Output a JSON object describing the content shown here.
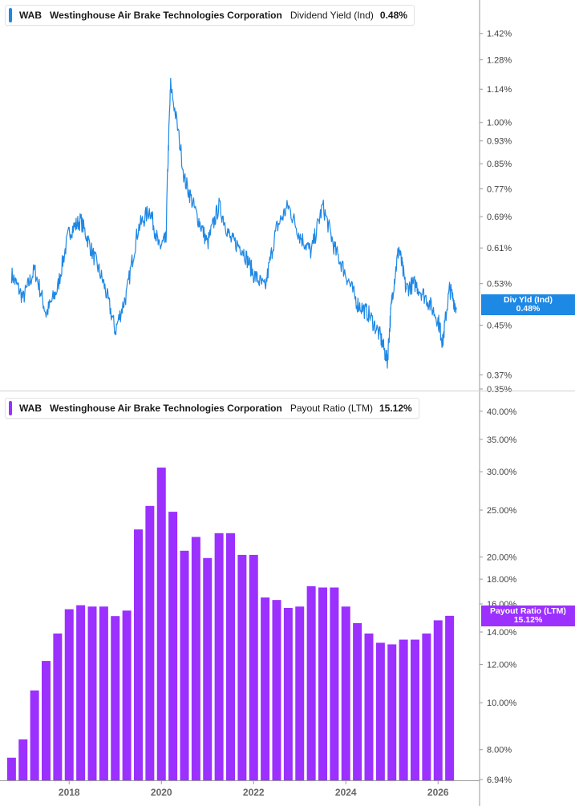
{
  "colors": {
    "yield_line": "#1e88e5",
    "payout_bar": "#9b30ff",
    "axis": "#9a9a9a",
    "tick_text": "#444444"
  },
  "top_panel": {
    "ticker": "WAB",
    "company": "Westinghouse Air Brake Technologies Corporation",
    "metric": "Dividend Yield (Ind)",
    "value": "0.48%",
    "tag_label": "Div Yld (Ind)",
    "tag_value": "0.48%"
  },
  "bottom_panel": {
    "ticker": "WAB",
    "company": "Westinghouse Air Brake Technologies Corporation",
    "metric": "Payout Ratio (LTM)",
    "value": "15.12%",
    "tag_label": "Payout Ratio (LTM)",
    "tag_value": "15.12%"
  },
  "chart_data": [
    {
      "type": "line",
      "scale": "log",
      "series": [
        {
          "name": "Dividend Yield (Ind)"
        }
      ],
      "ylim": [
        0.35,
        1.55
      ],
      "y_ticks": [
        "1.42%",
        "1.28%",
        "1.14%",
        "1.00%",
        "0.93%",
        "0.85%",
        "0.77%",
        "0.69%",
        "0.61%",
        "0.53%",
        "0.45%",
        "0.37%",
        "0.35%"
      ],
      "x": [
        "2016.75",
        "2017.0",
        "2017.25",
        "2017.5",
        "2017.75",
        "2018.0",
        "2018.25",
        "2018.5",
        "2018.75",
        "2019.0",
        "2019.25",
        "2019.5",
        "2019.75",
        "2019.95",
        "2020.1",
        "2020.2",
        "2020.5",
        "2020.75",
        "2021.0",
        "2021.25",
        "2021.5",
        "2021.75",
        "2022.0",
        "2022.25",
        "2022.5",
        "2022.75",
        "2023.0",
        "2023.25",
        "2023.5",
        "2023.75",
        "2024.0",
        "2024.25",
        "2024.5",
        "2024.75",
        "2024.9",
        "2025.0",
        "2025.15",
        "2025.3",
        "2025.5",
        "2025.75",
        "2026.0",
        "2026.1",
        "2026.25",
        "2026.4"
      ],
      "values": [
        0.55,
        0.5,
        0.56,
        0.47,
        0.52,
        0.65,
        0.68,
        0.6,
        0.53,
        0.44,
        0.51,
        0.66,
        0.71,
        0.61,
        0.63,
        1.16,
        0.8,
        0.7,
        0.62,
        0.72,
        0.63,
        0.61,
        0.55,
        0.52,
        0.66,
        0.72,
        0.64,
        0.6,
        0.72,
        0.61,
        0.55,
        0.49,
        0.47,
        0.43,
        0.39,
        0.5,
        0.61,
        0.52,
        0.53,
        0.5,
        0.46,
        0.42,
        0.52,
        0.48
      ]
    },
    {
      "type": "bar",
      "scale": "log",
      "series": [
        {
          "name": "Payout Ratio (LTM)"
        }
      ],
      "ylim": [
        6.94,
        42
      ],
      "y_ticks": [
        "40.00%",
        "35.00%",
        "30.00%",
        "25.00%",
        "20.00%",
        "18.00%",
        "16.00%",
        "14.00%",
        "12.00%",
        "10.00%",
        "8.00%",
        "6.94%"
      ],
      "x_ticks": [
        "2018",
        "2020",
        "2022",
        "2024",
        "2026"
      ],
      "x": [
        "2016.75",
        "2017.0",
        "2017.25",
        "2017.5",
        "2017.75",
        "2018.0",
        "2018.25",
        "2018.5",
        "2018.75",
        "2019.0",
        "2019.25",
        "2019.5",
        "2019.75",
        "2020.0",
        "2020.25",
        "2020.5",
        "2020.75",
        "2021.0",
        "2021.25",
        "2021.5",
        "2021.75",
        "2022.0",
        "2022.25",
        "2022.5",
        "2022.75",
        "2023.0",
        "2023.25",
        "2023.5",
        "2023.75",
        "2024.0",
        "2024.25",
        "2024.5",
        "2024.75",
        "2025.0",
        "2025.25",
        "2025.5",
        "2025.75",
        "2026.0",
        "2026.25"
      ],
      "values": [
        7.7,
        8.4,
        10.6,
        12.2,
        13.9,
        15.6,
        15.9,
        15.8,
        15.8,
        15.1,
        15.5,
        22.8,
        25.5,
        30.6,
        24.8,
        20.6,
        22.0,
        19.9,
        22.4,
        22.4,
        20.2,
        20.2,
        16.5,
        16.3,
        15.7,
        15.8,
        17.4,
        17.3,
        17.3,
        15.8,
        14.6,
        13.9,
        13.3,
        13.2,
        13.5,
        13.5,
        13.9,
        14.8,
        15.12
      ]
    }
  ]
}
